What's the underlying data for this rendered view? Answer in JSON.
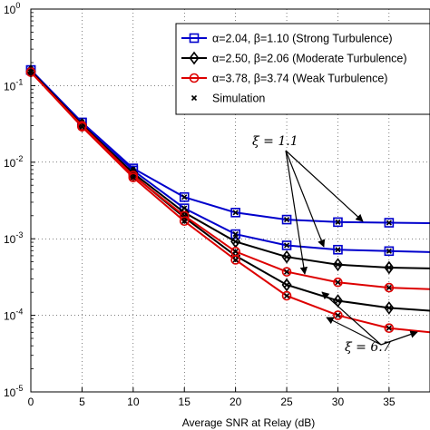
{
  "chart_data": {
    "type": "line",
    "xlabel": "Average SNR at Relay (dB)",
    "ylabel": "",
    "xlim": [
      0,
      39
    ],
    "ylim_exponents": [
      -5,
      0
    ],
    "y_scale": "log",
    "x_ticks": [
      0,
      5,
      10,
      15,
      20,
      25,
      30,
      35
    ],
    "y_tick_labels": [
      {
        "base": "10",
        "exp": "0",
        "value": 1
      },
      {
        "base": "10",
        "exp": "-1",
        "value": 0.1
      },
      {
        "base": "10",
        "exp": "-2",
        "value": 0.01
      },
      {
        "base": "10",
        "exp": "-3",
        "value": 0.001
      },
      {
        "base": "10",
        "exp": "-4",
        "value": 0.0001
      },
      {
        "base": "10",
        "exp": "-5",
        "value": 1e-05
      }
    ],
    "grid": true,
    "legend_position": "top-right",
    "legend": [
      {
        "label": "α=2.04, β=1.10 (Strong Turbulence)",
        "color": "#0000cc",
        "marker": "square"
      },
      {
        "label": "α=2.50, β=2.06 (Moderate Turbulence)",
        "color": "#000000",
        "marker": "diamond"
      },
      {
        "label": "α=3.78, β=3.74 (Weak Turbulence)",
        "color": "#dd0000",
        "marker": "circle"
      },
      {
        "label": "Simulation",
        "color": "#000000",
        "marker": "x"
      }
    ],
    "series": [
      {
        "turbulence": "strong",
        "xi_group": "1.1",
        "color": "#0000cc",
        "marker": "square",
        "x": [
          0,
          5,
          10,
          15,
          20,
          25,
          30,
          35,
          39
        ],
        "y": [
          0.16,
          0.033,
          0.0083,
          0.0035,
          0.0022,
          0.00178,
          0.00165,
          0.00162,
          0.0016
        ]
      },
      {
        "turbulence": "strong",
        "xi_group": "6.7",
        "color": "#0000cc",
        "marker": "square",
        "x": [
          0,
          5,
          10,
          15,
          20,
          25,
          30,
          35,
          39
        ],
        "y": [
          0.16,
          0.033,
          0.0078,
          0.0025,
          0.00115,
          0.00082,
          0.00072,
          0.00069,
          0.00067
        ]
      },
      {
        "turbulence": "moderate",
        "xi_group": "1.1",
        "color": "#000000",
        "marker": "diamond",
        "x": [
          0,
          5,
          10,
          15,
          20,
          25,
          30,
          35,
          39
        ],
        "y": [
          0.155,
          0.031,
          0.0072,
          0.0022,
          0.00092,
          0.00058,
          0.00046,
          0.00042,
          0.00041
        ]
      },
      {
        "turbulence": "moderate",
        "xi_group": "6.7",
        "color": "#000000",
        "marker": "diamond",
        "x": [
          0,
          5,
          10,
          15,
          20,
          25,
          30,
          35,
          39
        ],
        "y": [
          0.155,
          0.03,
          0.0068,
          0.0019,
          0.0006,
          0.00025,
          0.000155,
          0.000125,
          0.000115
        ]
      },
      {
        "turbulence": "weak",
        "xi_group": "1.1",
        "color": "#dd0000",
        "marker": "circle",
        "x": [
          0,
          5,
          10,
          15,
          20,
          25,
          30,
          35,
          39
        ],
        "y": [
          0.15,
          0.03,
          0.0067,
          0.002,
          0.00068,
          0.00037,
          0.00027,
          0.00023,
          0.00022
        ]
      },
      {
        "turbulence": "weak",
        "xi_group": "6.7",
        "color": "#dd0000",
        "marker": "circle",
        "x": [
          0,
          5,
          10,
          15,
          20,
          25,
          30,
          35,
          39
        ],
        "y": [
          0.15,
          0.029,
          0.0063,
          0.0017,
          0.00053,
          0.00018,
          0.0001,
          6.8e-05,
          6e-05
        ]
      }
    ],
    "annotations": [
      {
        "text": "ξ = 1.1",
        "group": "1.1"
      },
      {
        "text": "ξ = 6.7",
        "group": "6.7"
      }
    ]
  }
}
